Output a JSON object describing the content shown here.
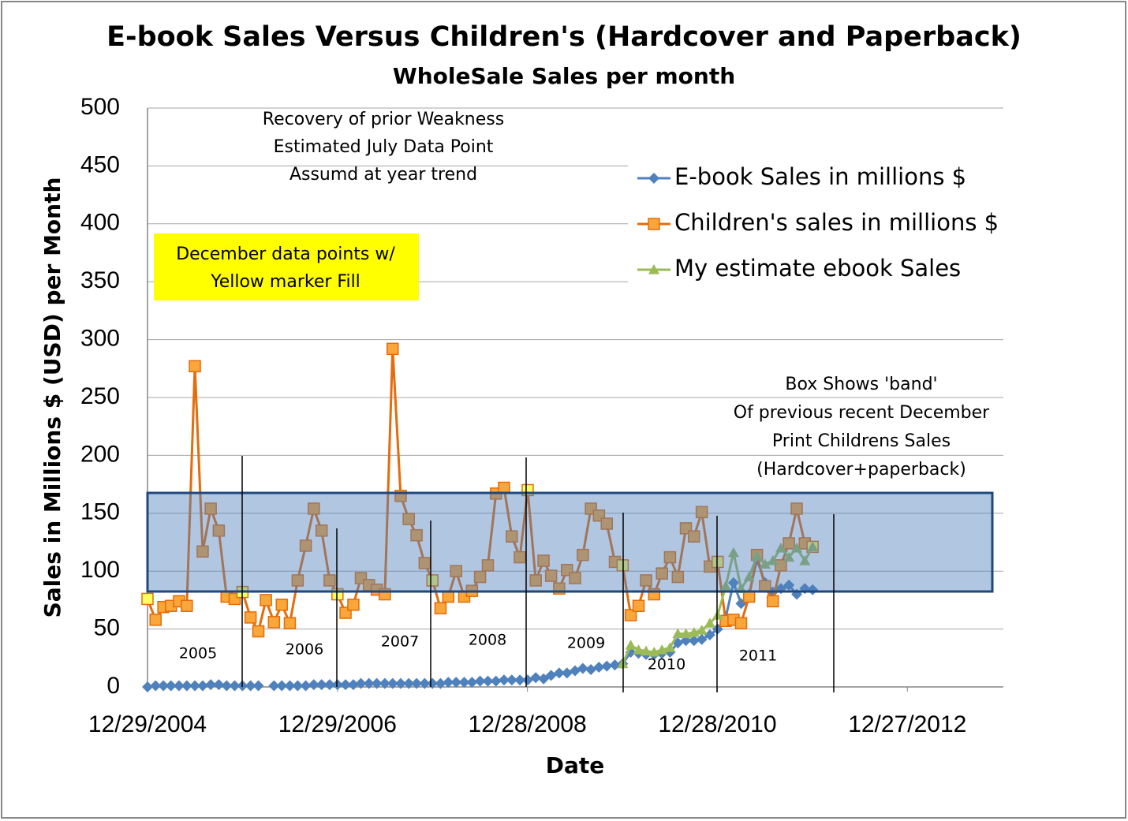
{
  "chart_data": {
    "type": "line",
    "title": "E-book Sales Versus Children's (Hardcover and Paperback)",
    "subtitle": "WholeSale Sales per month",
    "y_label": "Sales in Millions $ (USD) per Month",
    "x_label": "Date",
    "x": [
      "2004-12-29",
      "2005-01-29",
      "2005-02-28",
      "2005-03-29",
      "2005-04-29",
      "2005-05-29",
      "2005-06-29",
      "2005-07-29",
      "2005-08-29",
      "2005-09-29",
      "2005-10-29",
      "2005-11-29",
      "2005-12-29",
      "2006-01-29",
      "2006-02-28",
      "2006-03-29",
      "2006-04-29",
      "2006-05-29",
      "2006-06-29",
      "2006-07-29",
      "2006-08-29",
      "2006-09-29",
      "2006-10-29",
      "2006-11-29",
      "2006-12-29",
      "2007-01-29",
      "2007-02-28",
      "2007-03-29",
      "2007-04-29",
      "2007-05-29",
      "2007-06-29",
      "2007-07-29",
      "2007-08-29",
      "2007-09-29",
      "2007-10-29",
      "2007-11-29",
      "2007-12-29",
      "2008-01-29",
      "2008-02-28",
      "2008-03-29",
      "2008-04-29",
      "2008-05-29",
      "2008-06-29",
      "2008-07-29",
      "2008-08-29",
      "2008-09-29",
      "2008-10-29",
      "2008-11-29",
      "2008-12-29",
      "2009-01-29",
      "2009-02-28",
      "2009-03-29",
      "2009-04-29",
      "2009-05-29",
      "2009-06-29",
      "2009-07-29",
      "2009-08-29",
      "2009-09-29",
      "2009-10-29",
      "2009-11-29",
      "2009-12-29",
      "2010-01-29",
      "2010-02-28",
      "2010-03-29",
      "2010-04-29",
      "2010-05-29",
      "2010-06-29",
      "2010-07-29",
      "2010-08-29",
      "2010-09-29",
      "2010-10-29",
      "2010-11-29",
      "2010-12-29",
      "2011-01-29",
      "2011-02-28",
      "2011-03-29",
      "2011-04-29",
      "2011-05-29",
      "2011-06-29",
      "2011-07-29",
      "2011-08-29",
      "2011-09-29",
      "2011-10-29",
      "2011-11-29",
      "2011-12-29"
    ],
    "series": [
      {
        "name": "E-book Sales in millions $",
        "color": "#4f81bd",
        "marker": "diamond",
        "values": [
          0,
          1,
          1,
          1,
          1,
          1,
          1,
          1,
          2,
          2,
          1,
          1,
          1,
          1,
          1,
          null,
          1,
          1,
          1,
          1,
          1,
          2,
          2,
          2,
          2,
          2,
          2,
          3,
          3,
          3,
          3,
          3,
          3,
          3,
          3,
          3,
          3,
          3,
          4,
          4,
          4,
          4,
          5,
          5,
          5,
          6,
          6,
          6,
          6,
          8,
          7,
          10,
          12,
          12,
          14,
          16,
          15,
          17,
          18,
          19,
          20,
          30,
          29,
          28,
          28,
          29,
          30,
          38,
          40,
          40,
          41,
          45,
          50,
          60,
          90,
          72,
          80,
          110,
          90,
          82,
          85,
          88,
          80,
          85,
          84
        ]
      },
      {
        "name": "Children's sales in millions $",
        "color": "#e46c0a",
        "marker": "square",
        "marker_fill": "#f9a63a",
        "values": [
          76,
          58,
          69,
          70,
          74,
          70,
          277,
          117,
          154,
          135,
          78,
          76,
          82,
          60,
          48,
          75,
          56,
          71,
          55,
          92,
          122,
          154,
          135,
          92,
          80,
          64,
          71,
          94,
          88,
          84,
          80,
          292,
          165,
          145,
          131,
          107,
          92,
          68,
          78,
          100,
          78,
          83,
          95,
          105,
          167,
          172,
          130,
          112,
          170,
          92,
          109,
          96,
          85,
          101,
          94,
          114,
          154,
          148,
          141,
          108,
          105,
          62,
          70,
          92,
          80,
          98,
          112,
          95,
          137,
          130,
          151,
          104,
          108,
          57,
          58,
          55,
          78,
          114,
          87,
          74,
          105,
          124,
          154,
          124,
          121
        ]
      },
      {
        "name": "My estimate ebook Sales",
        "color": "#9bbb59",
        "marker": "triangle",
        "values": [
          null,
          null,
          null,
          null,
          null,
          null,
          null,
          null,
          null,
          null,
          null,
          null,
          null,
          null,
          null,
          null,
          null,
          null,
          null,
          null,
          null,
          null,
          null,
          null,
          null,
          null,
          null,
          null,
          null,
          null,
          null,
          null,
          null,
          null,
          null,
          null,
          null,
          null,
          null,
          null,
          null,
          null,
          null,
          null,
          null,
          null,
          null,
          null,
          null,
          null,
          null,
          null,
          null,
          null,
          null,
          null,
          null,
          null,
          null,
          null,
          20,
          36,
          32,
          31,
          30,
          32,
          34,
          46,
          46,
          47,
          49,
          55,
          62,
          87,
          116,
          85,
          95,
          113,
          106,
          109,
          120,
          112,
          120,
          109,
          121
        ]
      }
    ],
    "december_marker_fill": "#ffff66",
    "xlim": [
      "2004-12-29",
      "2013-12-31"
    ],
    "xticks": [
      {
        "value": "2004-12-29",
        "label": "12/29/2004"
      },
      {
        "value": "2006-12-29",
        "label": "12/29/2006"
      },
      {
        "value": "2008-12-28",
        "label": "12/28/2008"
      },
      {
        "value": "2010-12-28",
        "label": "12/28/2010"
      },
      {
        "value": "2012-12-27",
        "label": "12/27/2012"
      }
    ],
    "ylim": [
      0,
      500
    ],
    "yticks": [
      0,
      50,
      100,
      150,
      200,
      250,
      300,
      350,
      400,
      450,
      500
    ],
    "grid": true,
    "legend": "upper right",
    "annotations": {
      "top_note": [
        "Recovery of prior Weakness",
        "Estimated July Data Point",
        "Assumd at year trend"
      ],
      "yellow_note": [
        "December data points w/",
        "Yellow marker Fill"
      ],
      "band_note": [
        "Box Shows 'band'",
        "Of previous recent  December",
        "Print Childrens Sales",
        "(Hardcover+paperback)"
      ],
      "years": [
        "2005",
        "2006",
        "2007",
        "2008",
        "2009",
        "2010",
        "2011"
      ]
    }
  }
}
